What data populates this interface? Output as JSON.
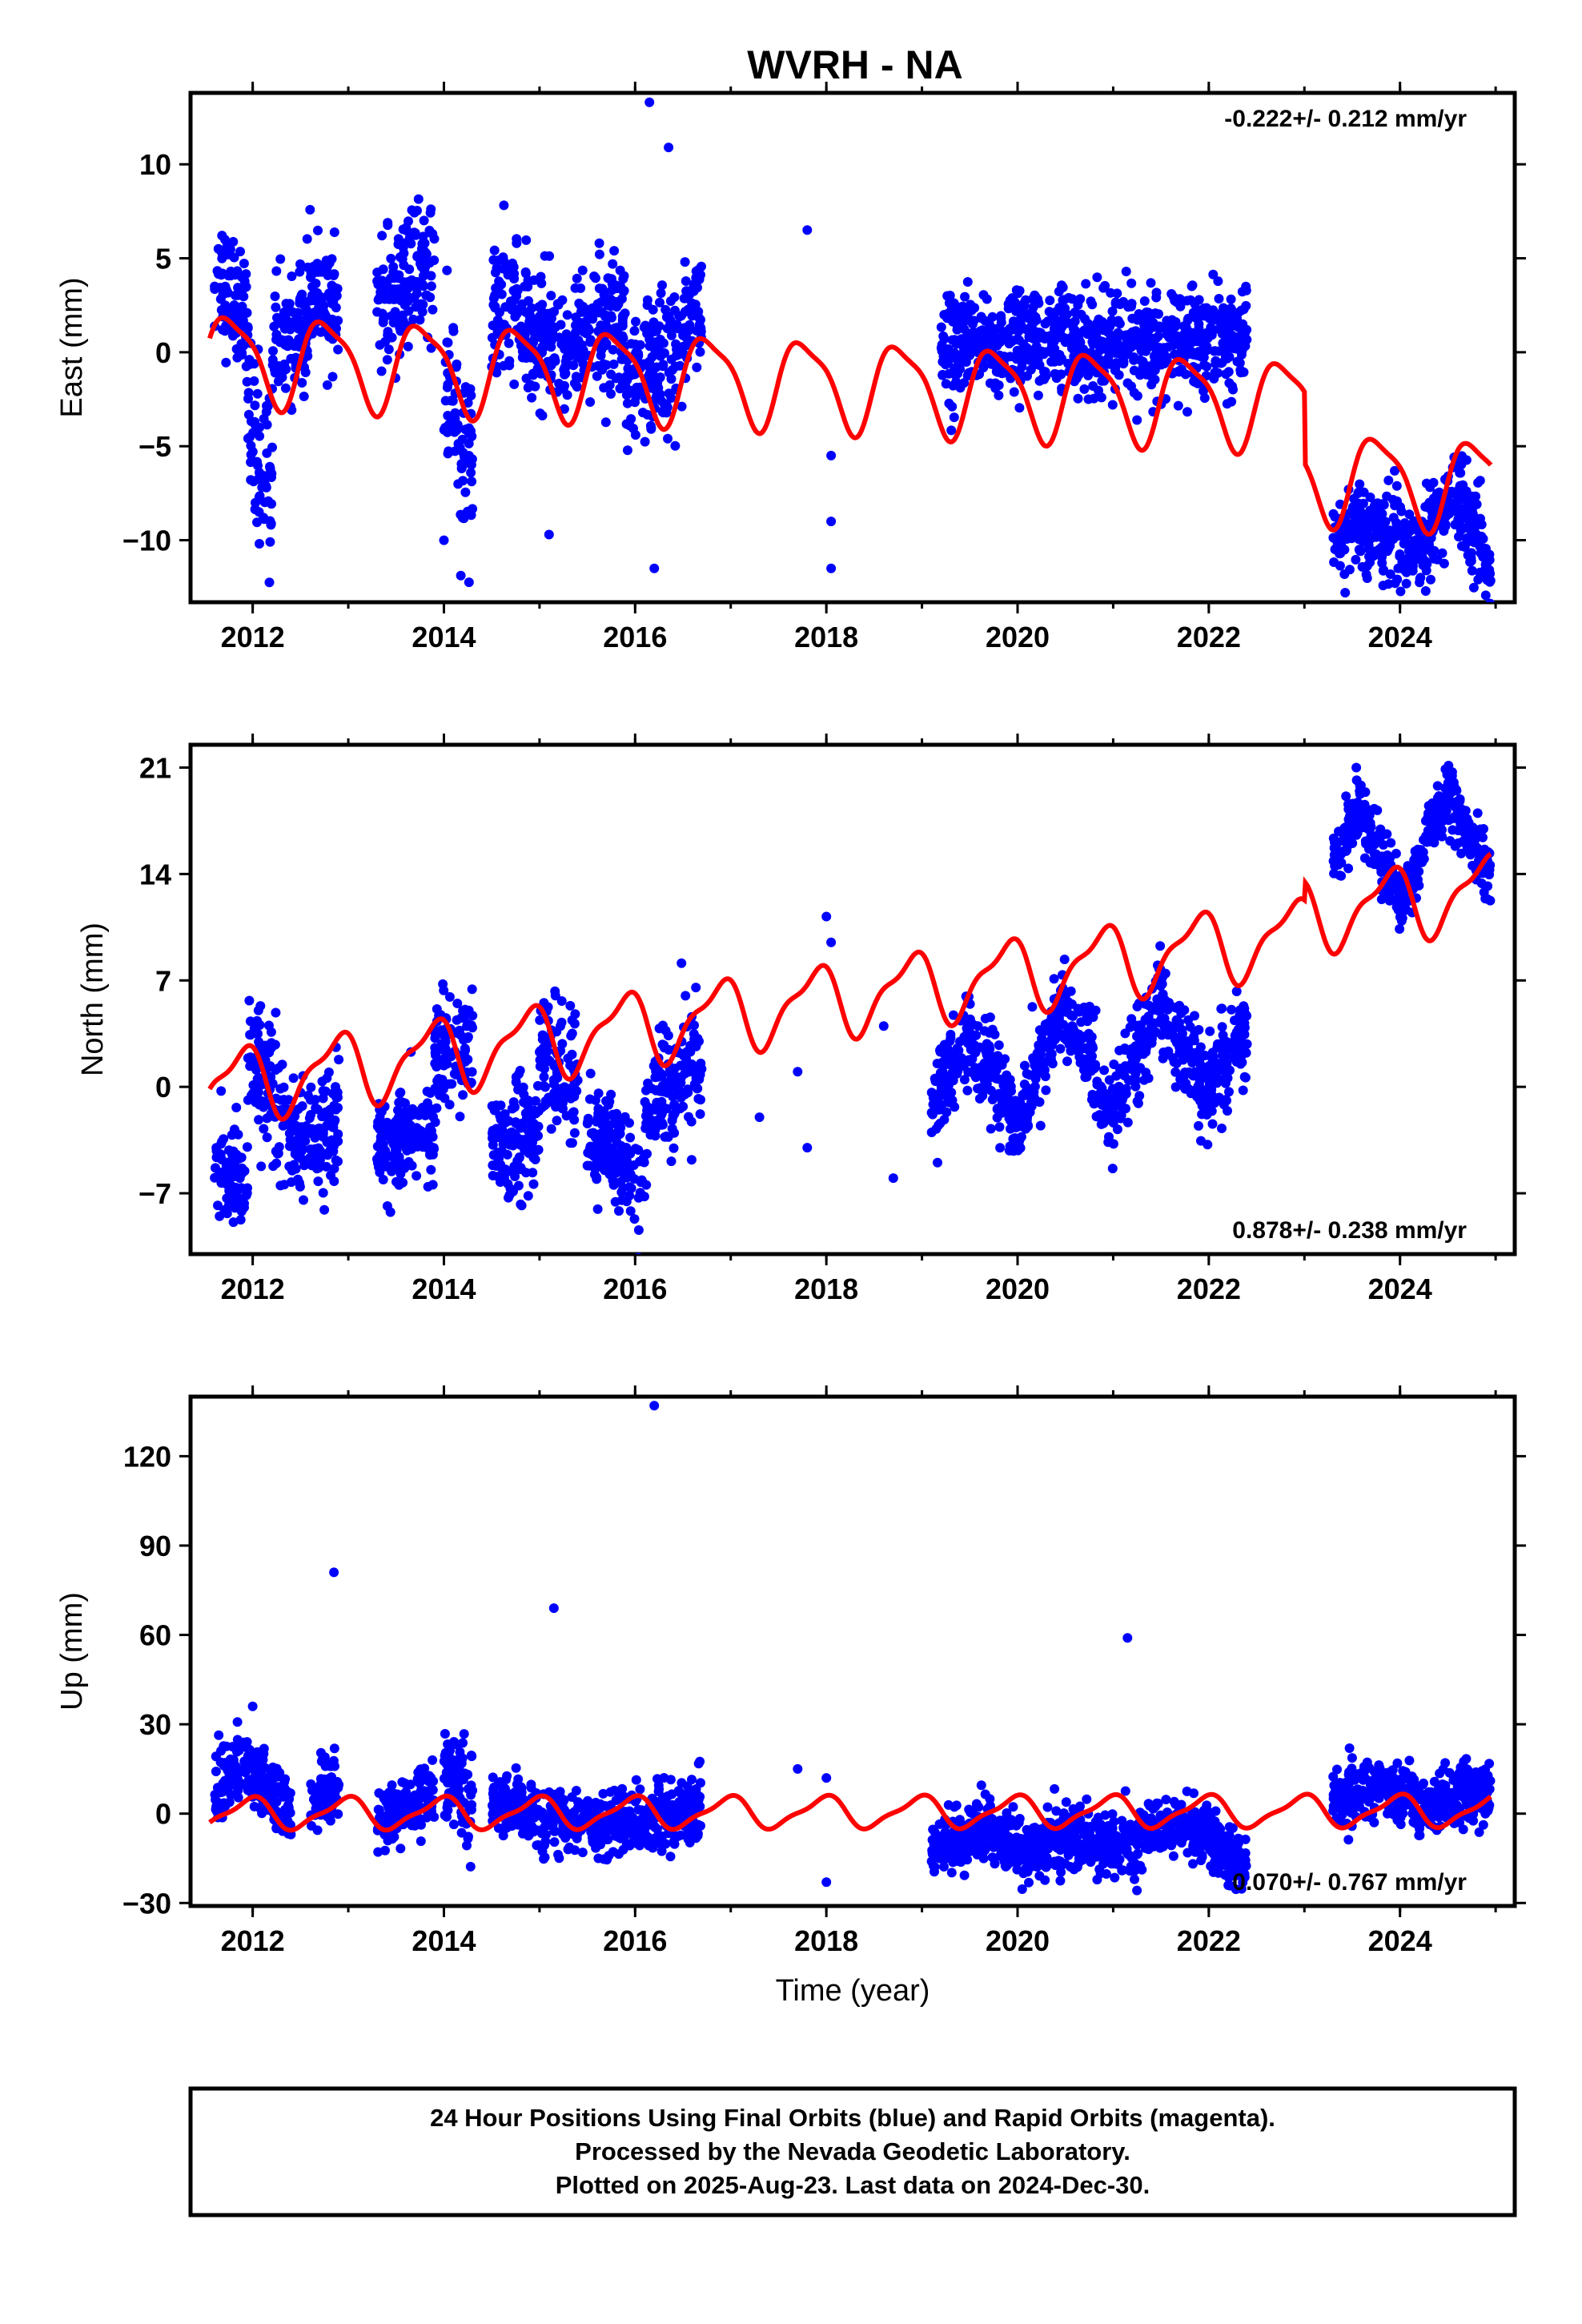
{
  "chart_data": [
    {
      "panel": "east",
      "type": "scatter",
      "title": "WVRH - NA",
      "ylabel": "East (mm)",
      "xlabel": "",
      "xlim": [
        2011.35,
        2025.2
      ],
      "ylim": [
        -13.3,
        13.8
      ],
      "xticks": [
        2012,
        2014,
        2016,
        2018,
        2020,
        2022,
        2024
      ],
      "yticks": [
        10,
        5,
        0,
        -5,
        -10
      ],
      "annotation": "-0.222+/- 0.212 mm/yr",
      "annotation_position": "top-right",
      "grid": false,
      "series": [
        {
          "color": "#0000ff",
          "segments": [
            {
              "x0": 2011.6,
              "x1": 2011.95,
              "mean": [
                4.0,
                2.0
              ],
              "spread": 1.6
            },
            {
              "x0": 2011.95,
              "x1": 2012.2,
              "mean": [
                -4.0,
                -7.0
              ],
              "spread": 2.5
            },
            {
              "x0": 2012.2,
              "x1": 2012.6,
              "mean": [
                0.5,
                1.5
              ],
              "spread": 1.6
            },
            {
              "x0": 2012.6,
              "x1": 2012.9,
              "mean": [
                3.5,
                2.0
              ],
              "spread": 1.5
            },
            {
              "x0": 2013.3,
              "x1": 2013.9,
              "mean": [
                2.0,
                5.0
              ],
              "spread": 1.8
            },
            {
              "x0": 2014.0,
              "x1": 2014.3,
              "mean": [
                -3.0,
                -6.0
              ],
              "spread": 2.5
            },
            {
              "x0": 2014.5,
              "x1": 2015.2,
              "mean": [
                2.5,
                0.5
              ],
              "spread": 1.8
            },
            {
              "x0": 2015.2,
              "x1": 2015.9,
              "mean": [
                0.0,
                2.0
              ],
              "spread": 1.8
            },
            {
              "x0": 2015.9,
              "x1": 2016.5,
              "mean": [
                -2.0,
                0.0
              ],
              "spread": 1.8
            },
            {
              "x0": 2016.5,
              "x1": 2016.7,
              "mean": [
                1.5,
                2.5
              ],
              "spread": 1.5
            },
            {
              "x0": 2019.2,
              "x1": 2022.4,
              "mean": [
                0.5,
                0.5
              ],
              "spread": 1.4
            },
            {
              "x0": 2023.3,
              "x1": 2023.6,
              "mean": [
                -10.0,
                -9.5
              ],
              "spread": 1.0
            },
            {
              "x0": 2023.6,
              "x1": 2024.2,
              "mean": [
                -9.5,
                -10.5
              ],
              "spread": 1.2
            },
            {
              "x0": 2024.2,
              "x1": 2024.6,
              "mean": [
                -10.0,
                -7.5
              ],
              "spread": 1.2
            },
            {
              "x0": 2024.6,
              "x1": 2024.95,
              "mean": [
                -7.5,
                -11.5
              ],
              "spread": 1.2
            }
          ],
          "outliers": [
            [
              2016.15,
              13.3
            ],
            [
              2016.35,
              10.9
            ],
            [
              2017.8,
              6.5
            ],
            [
              2016.2,
              -11.5
            ],
            [
              2018.05,
              -11.5
            ],
            [
              2018.05,
              -9.0
            ],
            [
              2018.05,
              -5.5
            ],
            [
              2014.0,
              -10.0
            ],
            [
              2015.1,
              -9.7
            ]
          ]
        },
        {
          "color": "#ff0000",
          "model": {
            "start": 2011.55,
            "end": 2024.95,
            "y0": -0.222,
            "rate": -0.222,
            "breaks": [
              [
                2023.0,
                -3.8
              ]
            ],
            "annual_amp": 2.3,
            "annual_phase": 3.0,
            "semiannual_amp": 0.6,
            "semiannual_phase": 0.6
          }
        }
      ]
    },
    {
      "panel": "north",
      "type": "scatter",
      "ylabel": "North (mm)",
      "xlabel": "",
      "xlim": [
        2011.35,
        2025.2
      ],
      "ylim": [
        -11,
        22.5
      ],
      "xticks": [
        2012,
        2014,
        2016,
        2018,
        2020,
        2022,
        2024
      ],
      "yticks": [
        21,
        14,
        7,
        0,
        -7
      ],
      "annotation": "0.878+/- 0.238 mm/yr",
      "annotation_position": "bottom-right",
      "grid": false,
      "series": [
        {
          "color": "#0000ff",
          "segments": [
            {
              "x0": 2011.6,
              "x1": 2011.95,
              "mean": [
                -5.0,
                -6.0
              ],
              "spread": 1.8
            },
            {
              "x0": 2011.95,
              "x1": 2012.45,
              "mean": [
                2.0,
                -3.0
              ],
              "spread": 2.2
            },
            {
              "x0": 2012.45,
              "x1": 2012.9,
              "mean": [
                -4.0,
                -2.0
              ],
              "spread": 1.8
            },
            {
              "x0": 2013.3,
              "x1": 2013.9,
              "mean": [
                -4.0,
                -3.0
              ],
              "spread": 1.6
            },
            {
              "x0": 2013.9,
              "x1": 2014.3,
              "mean": [
                2.0,
                3.0
              ],
              "spread": 2.0
            },
            {
              "x0": 2014.5,
              "x1": 2015.0,
              "mean": [
                -4.0,
                -3.0
              ],
              "spread": 1.8
            },
            {
              "x0": 2015.0,
              "x1": 2015.4,
              "mean": [
                2.0,
                0.0
              ],
              "spread": 2.2
            },
            {
              "x0": 2015.5,
              "x1": 2016.1,
              "mean": [
                -3.0,
                -6.0
              ],
              "spread": 1.8
            },
            {
              "x0": 2016.1,
              "x1": 2016.7,
              "mean": [
                -2.0,
                2.0
              ],
              "spread": 2.0
            },
            {
              "x0": 2019.1,
              "x1": 2019.5,
              "mean": [
                -1.0,
                3.5
              ],
              "spread": 1.5
            },
            {
              "x0": 2019.5,
              "x1": 2020.0,
              "mean": [
                3.0,
                -2.0
              ],
              "spread": 1.5
            },
            {
              "x0": 2020.0,
              "x1": 2020.5,
              "mean": [
                -2.0,
                5.5
              ],
              "spread": 1.5
            },
            {
              "x0": 2020.5,
              "x1": 2021.0,
              "mean": [
                5.0,
                -2.0
              ],
              "spread": 1.5
            },
            {
              "x0": 2021.0,
              "x1": 2021.5,
              "mean": [
                -1.5,
                6.0
              ],
              "spread": 1.5
            },
            {
              "x0": 2021.5,
              "x1": 2022.0,
              "mean": [
                5.0,
                -1.0
              ],
              "spread": 1.5
            },
            {
              "x0": 2022.0,
              "x1": 2022.4,
              "mean": [
                0.0,
                4.0
              ],
              "spread": 1.5
            },
            {
              "x0": 2023.3,
              "x1": 2023.6,
              "mean": [
                15.0,
                19.0
              ],
              "spread": 1.0
            },
            {
              "x0": 2023.6,
              "x1": 2024.0,
              "mean": [
                18.0,
                12.0
              ],
              "spread": 1.0
            },
            {
              "x0": 2024.0,
              "x1": 2024.5,
              "mean": [
                12.0,
                19.5
              ],
              "spread": 1.0
            },
            {
              "x0": 2024.5,
              "x1": 2024.95,
              "mean": [
                19.0,
                14.0
              ],
              "spread": 1.0
            }
          ],
          "outliers": [
            [
              2018.0,
              11.2
            ],
            [
              2018.05,
              9.5
            ],
            [
              2017.7,
              1.0
            ],
            [
              2017.8,
              -4.0
            ],
            [
              2018.6,
              4.0
            ],
            [
              2018.7,
              -6.0
            ],
            [
              2017.3,
              -2.0
            ]
          ]
        },
        {
          "color": "#ff0000",
          "model": {
            "start": 2011.55,
            "end": 2024.95,
            "y0": 0.0,
            "rate": 0.878,
            "breaks": [
              [
                2023.0,
                -3.8
              ]
            ],
            "annual_amp": 2.2,
            "annual_phase": 2.4,
            "semiannual_amp": 0.8,
            "semiannual_phase": 1.2
          }
        }
      ]
    },
    {
      "panel": "up",
      "type": "scatter",
      "ylabel": "Up (mm)",
      "xlabel": "Time (year)",
      "xlim": [
        2011.35,
        2025.2
      ],
      "ylim": [
        -31,
        140
      ],
      "xticks": [
        2012,
        2014,
        2016,
        2018,
        2020,
        2022,
        2024
      ],
      "yticks": [
        120,
        90,
        60,
        30,
        0,
        -30
      ],
      "annotation": "0.070+/- 0.767 mm/yr",
      "annotation_position": "bottom-right",
      "grid": false,
      "series": [
        {
          "color": "#0000ff",
          "segments": [
            {
              "x0": 2011.6,
              "x1": 2011.9,
              "mean": [
                8.0,
                18.0
              ],
              "spread": 6.0
            },
            {
              "x0": 2011.9,
              "x1": 2012.4,
              "mean": [
                15.0,
                0.0
              ],
              "spread": 6.0
            },
            {
              "x0": 2012.6,
              "x1": 2012.9,
              "mean": [
                5.0,
                10.0
              ],
              "spread": 6.0
            },
            {
              "x0": 2013.3,
              "x1": 2013.9,
              "mean": [
                -3.0,
                8.0
              ],
              "spread": 5.0
            },
            {
              "x0": 2014.0,
              "x1": 2014.3,
              "mean": [
                12.0,
                5.0
              ],
              "spread": 8.0
            },
            {
              "x0": 2014.5,
              "x1": 2015.2,
              "mean": [
                5.0,
                -5.0
              ],
              "spread": 5.0
            },
            {
              "x0": 2015.2,
              "x1": 2016.0,
              "mean": [
                -2.0,
                -4.0
              ],
              "spread": 5.0
            },
            {
              "x0": 2016.0,
              "x1": 2016.7,
              "mean": [
                -3.0,
                2.0
              ],
              "spread": 6.0
            },
            {
              "x0": 2019.1,
              "x1": 2019.6,
              "mean": [
                -12.0,
                -5.0
              ],
              "spread": 5.0
            },
            {
              "x0": 2019.6,
              "x1": 2020.3,
              "mean": [
                -5.0,
                -15.0
              ],
              "spread": 5.0
            },
            {
              "x0": 2020.3,
              "x1": 2021.0,
              "mean": [
                -8.0,
                -10.0
              ],
              "spread": 5.0
            },
            {
              "x0": 2021.0,
              "x1": 2021.7,
              "mean": [
                -12.0,
                -3.0
              ],
              "spread": 5.0
            },
            {
              "x0": 2021.7,
              "x1": 2022.4,
              "mean": [
                -3.0,
                -18.0
              ],
              "spread": 5.0
            },
            {
              "x0": 2023.3,
              "x1": 2023.8,
              "mean": [
                4.0,
                10.0
              ],
              "spread": 5.0
            },
            {
              "x0": 2023.8,
              "x1": 2024.4,
              "mean": [
                8.0,
                3.0
              ],
              "spread": 5.0
            },
            {
              "x0": 2024.4,
              "x1": 2024.95,
              "mean": [
                5.0,
                8.0
              ],
              "spread": 5.0
            }
          ],
          "outliers": [
            [
              2016.2,
              137.0
            ],
            [
              2012.85,
              81.0
            ],
            [
              2015.15,
              69.0
            ],
            [
              2021.15,
              59.0
            ],
            [
              2017.7,
              15.0
            ],
            [
              2018.0,
              12.0
            ],
            [
              2018.0,
              -23.0
            ],
            [
              2012.0,
              36.0
            ]
          ]
        },
        {
          "color": "#ff0000",
          "model": {
            "start": 2011.55,
            "end": 2024.95,
            "y0": 0.0,
            "rate": 0.07,
            "breaks": [],
            "annual_amp": 5.0,
            "annual_phase": 1.8,
            "semiannual_amp": 1.5,
            "semiannual_phase": 0.5
          }
        }
      ]
    }
  ],
  "footer": {
    "line1": "24 Hour Positions Using Final Orbits (blue) and Rapid Orbits (magenta).",
    "line2": "Processed by the Nevada Geodetic Laboratory.",
    "line3": "Plotted on 2025-Aug-23. Last data on 2024-Dec-30."
  }
}
